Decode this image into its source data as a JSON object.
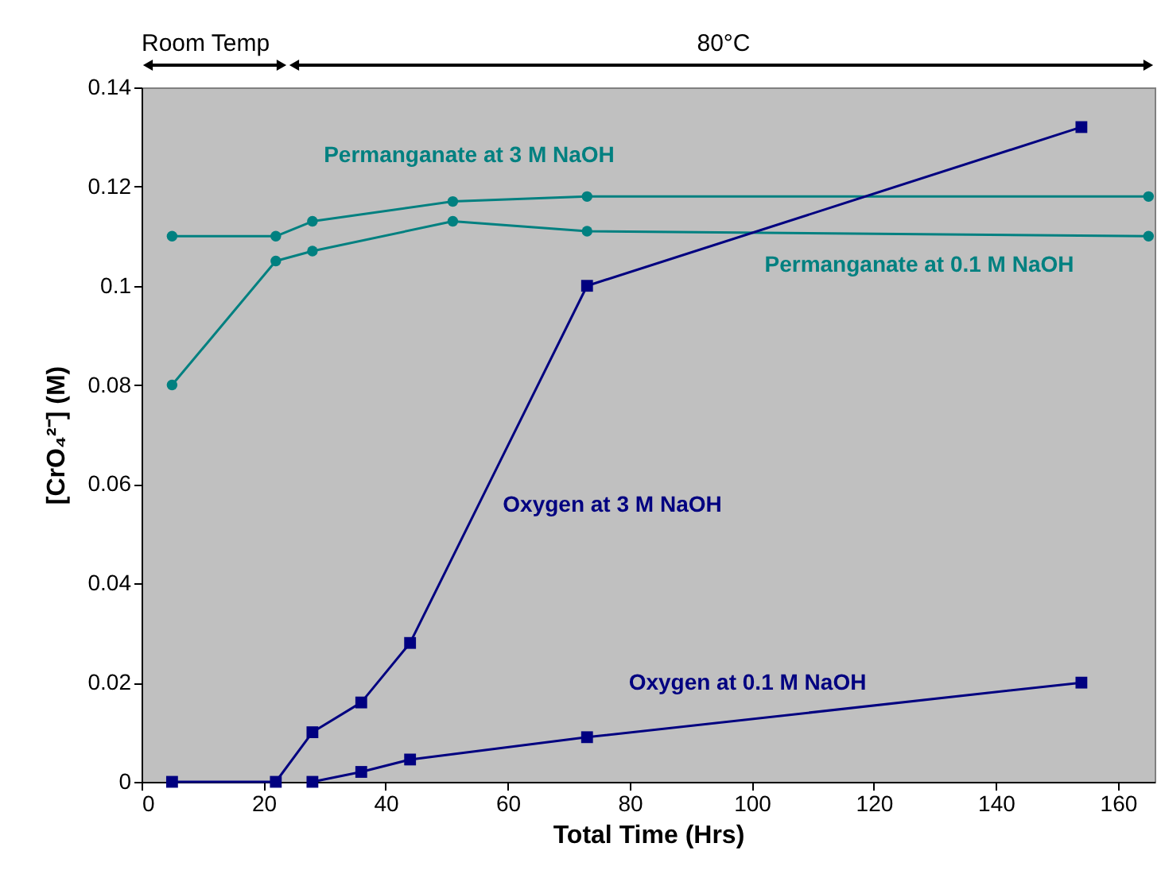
{
  "chart_data": {
    "type": "line",
    "xlabel": "Total Time (Hrs)",
    "ylabel": "[CrO₄²⁻] (M)",
    "xlim": [
      0,
      166
    ],
    "xticks": [
      0,
      20,
      40,
      60,
      80,
      100,
      120,
      140,
      160
    ],
    "ylim": [
      0,
      0.14
    ],
    "yticks": [
      0,
      0.02,
      0.04,
      0.06,
      0.08,
      0.1,
      0.12,
      0.14
    ],
    "grid": false,
    "legend": false,
    "series": [
      {
        "name": "Permanganate at 3 M NaOH",
        "color": "#008080",
        "marker": "circle",
        "x": [
          5,
          22,
          28,
          51,
          73,
          165
        ],
        "values": [
          0.11,
          0.11,
          0.113,
          0.117,
          0.118,
          0.118
        ]
      },
      {
        "name": "Permanganate at 0.1 M NaOH",
        "color": "#008080",
        "marker": "circle",
        "x": [
          5,
          22,
          28,
          51,
          73,
          165
        ],
        "values": [
          0.08,
          0.105,
          0.107,
          0.113,
          0.111,
          0.11
        ]
      },
      {
        "name": "Oxygen at 3 M NaOH",
        "color": "#000080",
        "marker": "square",
        "x": [
          5,
          22,
          28,
          36,
          44,
          73,
          154
        ],
        "values": [
          0,
          0,
          0.01,
          0.016,
          0.028,
          0.1,
          0.132
        ]
      },
      {
        "name": "Oxygen at 0.1 M NaOH",
        "color": "#000080",
        "marker": "square",
        "x": [
          28,
          36,
          44,
          73,
          154
        ],
        "values": [
          0,
          0.002,
          0.0045,
          0.009,
          0.02
        ]
      }
    ],
    "annotations": [
      "Room Temp",
      "80°C"
    ]
  }
}
